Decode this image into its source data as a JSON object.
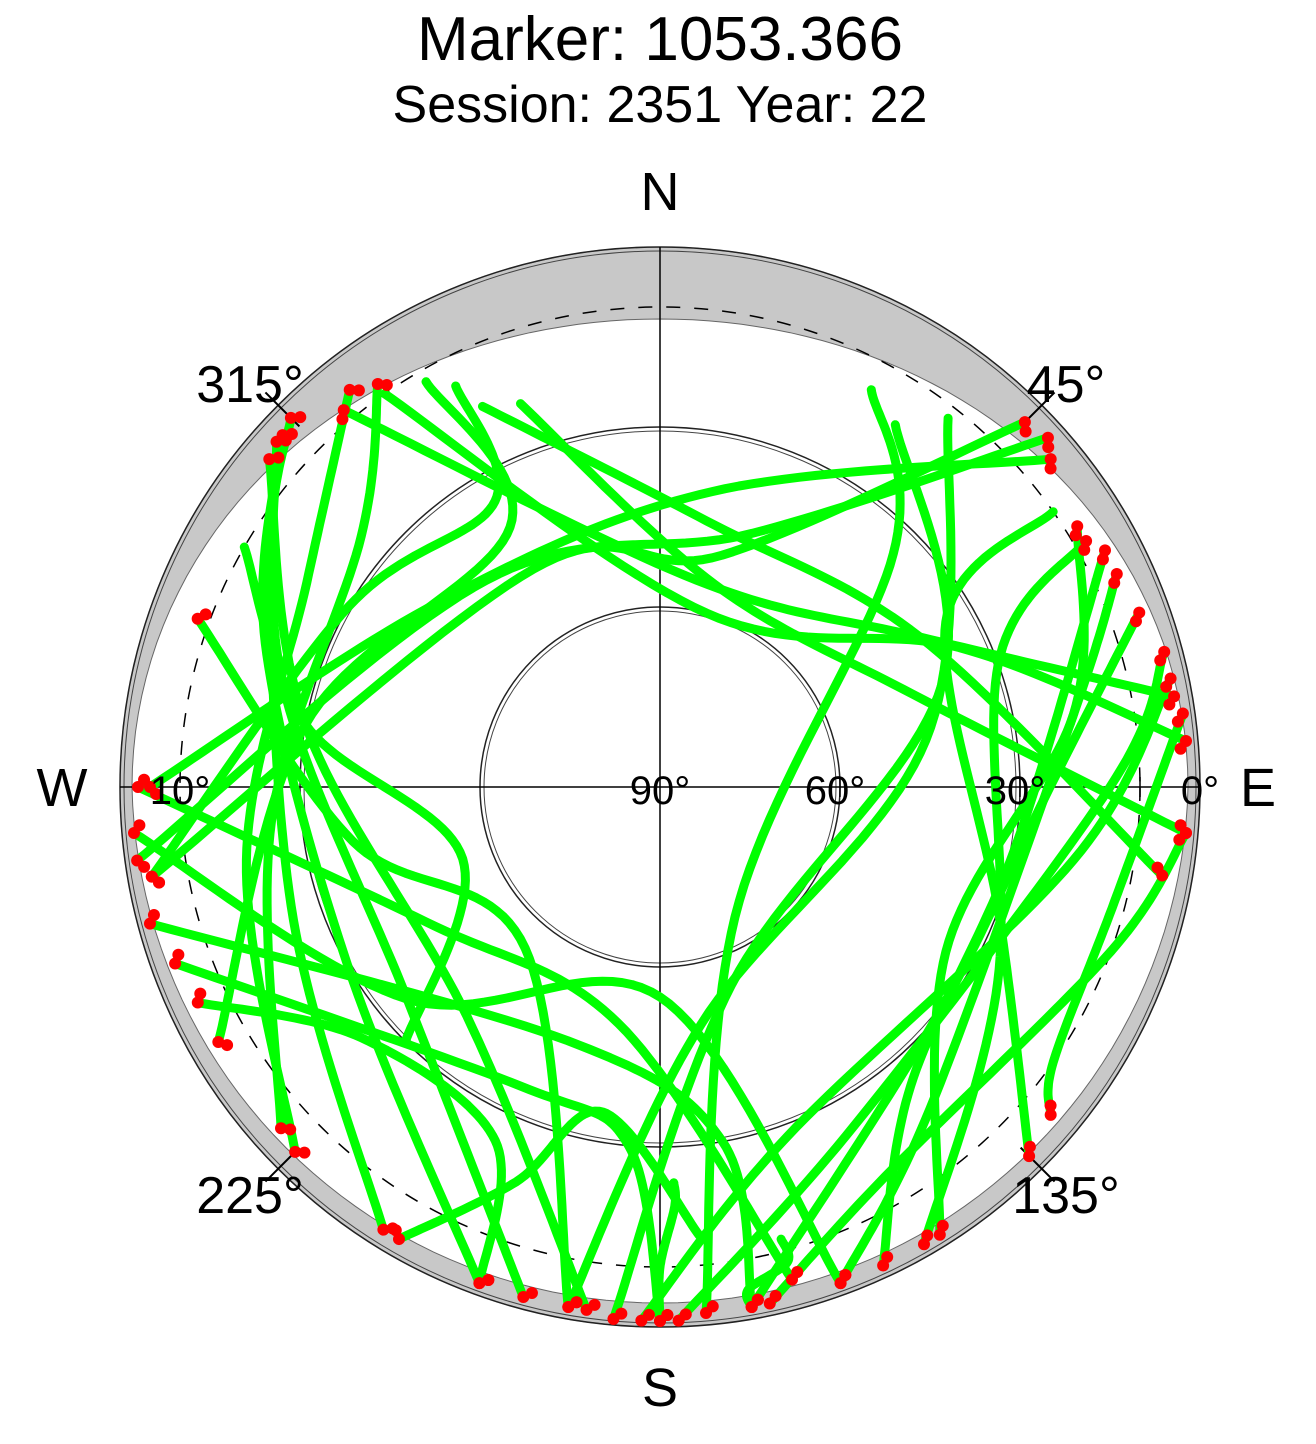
{
  "chart_data": {
    "type": "scatter",
    "title": "Marker: 1053.366",
    "subtitle": "Session: 2351 Year: 22",
    "compass": {
      "north": "N",
      "south": "S",
      "east": "E",
      "west": "W"
    },
    "azimuth_labels": [
      {
        "label": "315°",
        "azimuth": 315
      },
      {
        "label": "45°",
        "azimuth": 45
      },
      {
        "label": "225°",
        "azimuth": 225
      },
      {
        "label": "135°",
        "azimuth": 135
      }
    ],
    "elevation_labels": [
      "10°",
      "90°",
      "60°",
      "30°",
      "0°"
    ],
    "elevation_rings": [
      60,
      30,
      0
    ],
    "cutoff_elevation": 10,
    "colors": {
      "track": "#00ff00",
      "flagged": "#ff0000",
      "mask": "#c8c8c8",
      "axis": "#000000"
    },
    "tracks": [
      {
        "az": [
          312,
          285,
          230,
          195
        ],
        "el": [
          4,
          25,
          35,
          2
        ]
      },
      {
        "az": [
          310,
          280,
          220,
          188
        ],
        "el": [
          5,
          30,
          40,
          2
        ]
      },
      {
        "az": [
          313,
          290,
          240,
          200
        ],
        "el": [
          4,
          20,
          30,
          2
        ]
      },
      {
        "az": [
          315,
          300,
          250,
          212
        ],
        "el": [
          3,
          15,
          25,
          3
        ]
      },
      {
        "az": [
          322,
          300,
          260,
          225
        ],
        "el": [
          6,
          22,
          20,
          4
        ]
      },
      {
        "az": [
          325,
          310,
          265,
          228
        ],
        "el": [
          8,
          25,
          25,
          5
        ]
      },
      {
        "az": [
          330,
          330,
          280,
          240
        ],
        "el": [
          12,
          40,
          30,
          5
        ]
      },
      {
        "az": [
          333,
          330,
          300,
          260
        ],
        "el": [
          15,
          35,
          30,
          4
        ]
      },
      {
        "az": [
          335,
          10,
          60,
          100
        ],
        "el": [
          20,
          45,
          40,
          5
        ]
      },
      {
        "az": [
          340,
          15,
          70,
          95
        ],
        "el": [
          22,
          55,
          45,
          2
        ]
      },
      {
        "az": [
          48,
          20,
          320,
          262
        ],
        "el": [
          3,
          45,
          45,
          2
        ]
      },
      {
        "az": [
          45,
          15,
          330,
          260
        ],
        "el": [
          4,
          50,
          48,
          4
        ]
      },
      {
        "az": [
          50,
          10,
          310,
          270
        ],
        "el": [
          5,
          40,
          42,
          5
        ]
      },
      {
        "az": [
          55,
          60,
          110,
          135
        ],
        "el": [
          10,
          35,
          30,
          3
        ]
      },
      {
        "az": [
          60,
          70,
          120,
          150
        ],
        "el": [
          8,
          30,
          25,
          2
        ]
      },
      {
        "az": [
          65,
          80,
          140,
          160
        ],
        "el": [
          6,
          20,
          20,
          2
        ]
      },
      {
        "az": [
          70,
          90,
          130,
          170
        ],
        "el": [
          5,
          25,
          30,
          2
        ]
      },
      {
        "az": [
          75,
          90,
          150,
          178
        ],
        "el": [
          3,
          15,
          25,
          1
        ]
      },
      {
        "az": [
          78,
          100,
          160,
          182
        ],
        "el": [
          3,
          20,
          28,
          1
        ]
      },
      {
        "az": [
          82,
          105,
          125,
          130
        ],
        "el": [
          2,
          12,
          10,
          5
        ]
      },
      {
        "az": [
          80,
          60,
          10,
          320
        ],
        "el": [
          3,
          40,
          55,
          8
        ]
      },
      {
        "az": [
          85,
          65,
          15,
          325
        ],
        "el": [
          2,
          35,
          60,
          10
        ]
      },
      {
        "az": [
          28,
          45,
          150,
          175
        ],
        "el": [
          15,
          35,
          65,
          2
        ]
      },
      {
        "az": [
          33,
          70,
          160,
          185
        ],
        "el": [
          18,
          40,
          55,
          1
        ]
      },
      {
        "az": [
          38,
          80,
          170,
          190
        ],
        "el": [
          12,
          45,
          50,
          2
        ]
      },
      {
        "az": [
          95,
          110,
          150,
          168
        ],
        "el": [
          2,
          10,
          15,
          2
        ]
      },
      {
        "az": [
          265,
          230,
          180,
          160
        ],
        "el": [
          2,
          35,
          55,
          2
        ]
      },
      {
        "az": [
          270,
          240,
          190,
          165
        ],
        "el": [
          3,
          45,
          50,
          5
        ]
      },
      {
        "az": [
          255,
          200,
          170,
          170
        ],
        "el": [
          2,
          45,
          30,
          2
        ]
      },
      {
        "az": [
          250,
          205,
          185,
          180
        ],
        "el": [
          4,
          35,
          30,
          1
        ]
      },
      {
        "az": [
          245,
          230,
          205,
          200
        ],
        "el": [
          5,
          25,
          25,
          2
        ]
      },
      {
        "az": [
          210,
          200,
          190,
          175
        ],
        "el": [
          3,
          20,
          35,
          15
        ]
      },
      {
        "az": [
          178,
          178,
          180,
          180
        ],
        "el": [
          24,
          20,
          10,
          1
        ]
      },
      {
        "az": [
          165,
          165,
          170,
          170
        ],
        "el": [
          12,
          8,
          5,
          2
        ]
      },
      {
        "az": [
          300,
          280,
          250,
          225
        ],
        "el": [
          10,
          30,
          55,
          30
        ]
      },
      {
        "az": [
          290,
          260,
          220,
          190
        ],
        "el": [
          8,
          38,
          55,
          2
        ]
      },
      {
        "az": [
          58,
          80,
          120,
          148
        ],
        "el": [
          8,
          20,
          35,
          2
        ]
      },
      {
        "az": [
          62,
          100,
          140,
          155
        ],
        "el": [
          6,
          30,
          25,
          2
        ]
      }
    ]
  }
}
